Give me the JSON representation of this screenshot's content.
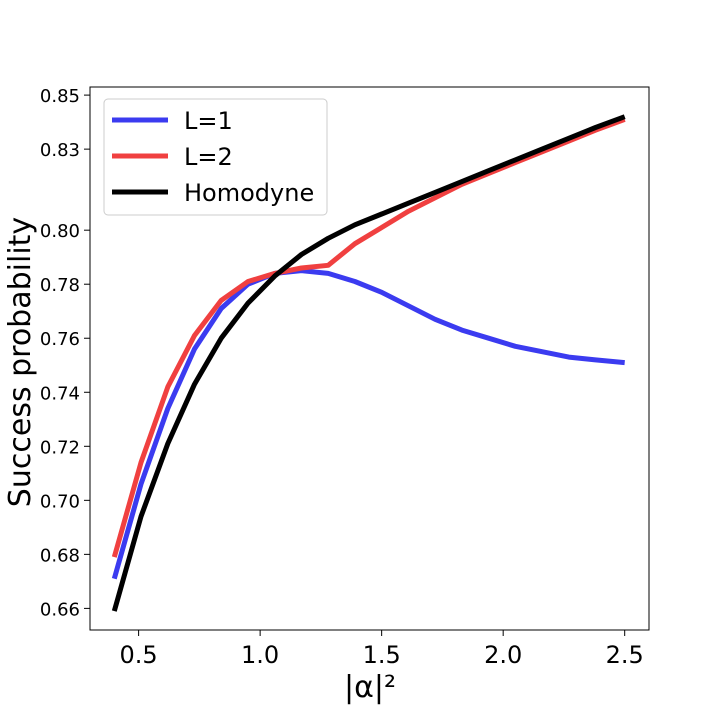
{
  "chart_data": {
    "type": "line",
    "title": "",
    "xlabel": "|α|²",
    "ylabel": "Success probability",
    "xlim": [
      0.3,
      2.6
    ],
    "ylim": [
      0.652,
      0.853
    ],
    "xticks": [
      0.5,
      1.0,
      1.5,
      2.0,
      2.5
    ],
    "xtick_labels": [
      "0.5",
      "1.0",
      "1.5",
      "2.0",
      "2.5"
    ],
    "yticks": [
      0.66,
      0.68,
      0.7,
      0.72,
      0.74,
      0.76,
      0.78,
      0.8,
      0.83,
      0.85
    ],
    "ytick_labels": [
      "0.66",
      "0.68",
      "0.70",
      "0.72",
      "0.74",
      "0.76",
      "0.78",
      "0.80",
      "0.83",
      "0.85"
    ],
    "grid": false,
    "legend_position": "top-left",
    "series": [
      {
        "name": "L=1",
        "color": "#3b3bf0",
        "x": [
          0.4,
          0.51,
          0.62,
          0.73,
          0.84,
          0.95,
          1.06,
          1.17,
          1.28,
          1.39,
          1.5,
          1.61,
          1.72,
          1.83,
          1.94,
          2.05,
          2.16,
          2.27,
          2.38,
          2.5
        ],
        "y": [
          0.671,
          0.706,
          0.734,
          0.756,
          0.771,
          0.78,
          0.784,
          0.785,
          0.784,
          0.781,
          0.777,
          0.772,
          0.767,
          0.763,
          0.76,
          0.757,
          0.755,
          0.753,
          0.752,
          0.751
        ]
      },
      {
        "name": "L=2",
        "color": "#f04040",
        "x": [
          0.4,
          0.51,
          0.62,
          0.73,
          0.84,
          0.95,
          1.06,
          1.17,
          1.28,
          1.39,
          1.5,
          1.61,
          1.72,
          1.83,
          1.94,
          2.05,
          2.16,
          2.27,
          2.38,
          2.5
        ],
        "y": [
          0.679,
          0.714,
          0.742,
          0.761,
          0.774,
          0.781,
          0.784,
          0.786,
          0.787,
          0.795,
          0.801,
          0.807,
          0.812,
          0.817,
          0.821,
          0.825,
          0.829,
          0.833,
          0.837,
          0.841
        ]
      },
      {
        "name": "Homodyne",
        "color": "#000000",
        "x": [
          0.4,
          0.51,
          0.62,
          0.73,
          0.84,
          0.95,
          1.06,
          1.17,
          1.28,
          1.39,
          1.5,
          1.61,
          1.72,
          1.83,
          1.94,
          2.05,
          2.16,
          2.27,
          2.38,
          2.5
        ],
        "y": [
          0.659,
          0.694,
          0.721,
          0.743,
          0.76,
          0.773,
          0.783,
          0.791,
          0.797,
          0.802,
          0.806,
          0.81,
          0.814,
          0.818,
          0.822,
          0.826,
          0.83,
          0.834,
          0.838,
          0.842
        ]
      }
    ]
  }
}
